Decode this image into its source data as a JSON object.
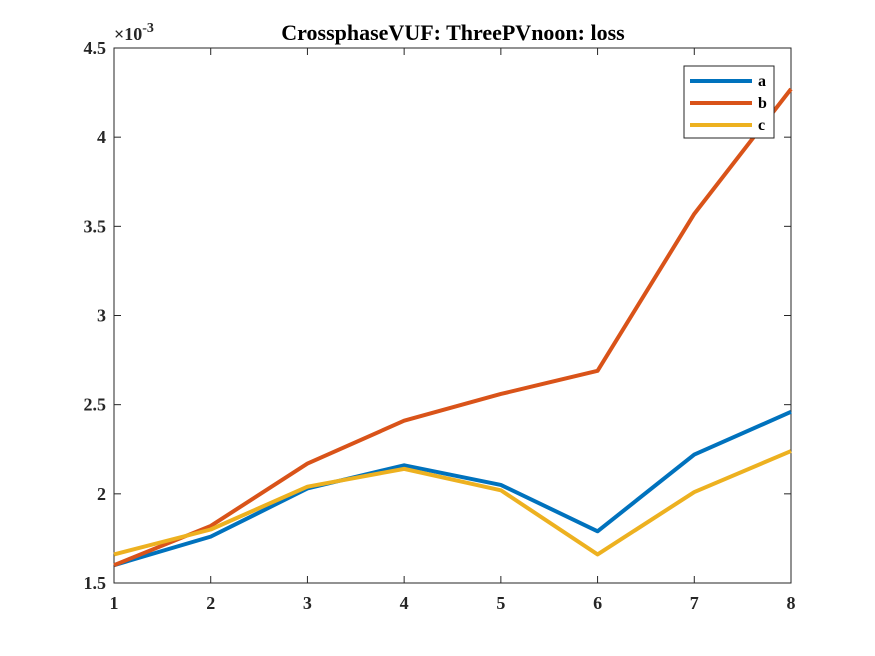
{
  "chart_data": {
    "type": "line",
    "title": "CrossphaseVUF: ThreePVnoon: loss",
    "xlabel": "",
    "ylabel": "",
    "x": [
      1,
      2,
      3,
      4,
      5,
      6,
      7,
      8
    ],
    "xlim": [
      1,
      8
    ],
    "ylim": [
      1.5,
      4.5
    ],
    "y_multiplier_label": "×10",
    "y_multiplier_exponent": "-3",
    "x_ticks": [
      "1",
      "2",
      "3",
      "4",
      "5",
      "6",
      "7",
      "8"
    ],
    "y_ticks": [
      "1.5",
      "2",
      "2.5",
      "3",
      "3.5",
      "4",
      "4.5"
    ],
    "grid": false,
    "legend_position": "top-right",
    "series": [
      {
        "name": "a",
        "color": "#0072BD",
        "values": [
          1.6,
          1.76,
          2.03,
          2.16,
          2.05,
          1.79,
          2.22,
          2.46
        ]
      },
      {
        "name": "b",
        "color": "#D95319",
        "values": [
          1.6,
          1.82,
          2.17,
          2.41,
          2.56,
          2.69,
          3.57,
          4.27
        ]
      },
      {
        "name": "c",
        "color": "#EDB120",
        "values": [
          1.66,
          1.8,
          2.04,
          2.14,
          2.02,
          1.66,
          2.01,
          2.24
        ]
      }
    ]
  }
}
